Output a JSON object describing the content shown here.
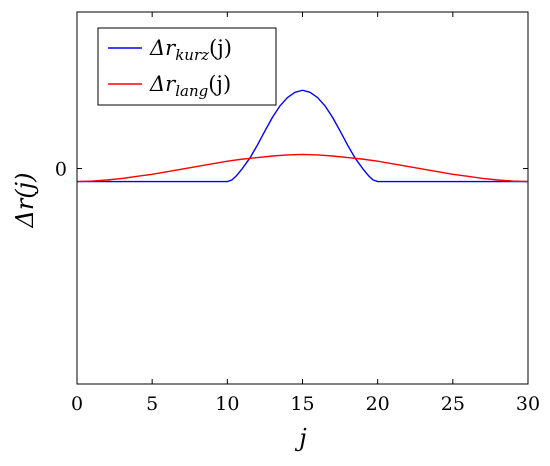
{
  "chart_data": {
    "type": "line",
    "xlabel": "j",
    "ylabel": "Δr(j)",
    "xlim": [
      0,
      30
    ],
    "ylim": [
      -4.13,
      3.0
    ],
    "grid": false,
    "legend_position": "top-left",
    "x_ticks": [
      0,
      5,
      10,
      15,
      20,
      25,
      30
    ],
    "x_tick_labels": [
      "0",
      "5",
      "10",
      "15",
      "20",
      "25",
      "30"
    ],
    "y_ticks": [
      0
    ],
    "y_tick_labels": [
      "0"
    ],
    "colors": {
      "kurz": "#0000ff",
      "lang": "#ff0000"
    },
    "series": [
      {
        "name": "Δr_kurz(j)",
        "legend_base": "Δr",
        "legend_sub": "kurz",
        "legend_tail": "(j)",
        "color": "#0000ff",
        "x": [
          0,
          2,
          4,
          6,
          8,
          10,
          10.3,
          10.6,
          11,
          11.5,
          12,
          12.5,
          13,
          13.5,
          14,
          14.5,
          15,
          15.5,
          16,
          16.5,
          17,
          17.5,
          18,
          18.5,
          19,
          19.4,
          19.7,
          20,
          22,
          24,
          26,
          28,
          30
        ],
        "y": [
          -0.25,
          -0.25,
          -0.25,
          -0.25,
          -0.25,
          -0.25,
          -0.22,
          -0.14,
          0.0,
          0.2,
          0.45,
          0.72,
          0.98,
          1.2,
          1.36,
          1.46,
          1.5,
          1.46,
          1.36,
          1.2,
          0.98,
          0.72,
          0.45,
          0.2,
          0.0,
          -0.14,
          -0.22,
          -0.25,
          -0.25,
          -0.25,
          -0.25,
          -0.25,
          -0.25
        ]
      },
      {
        "name": "Δr_lang(j)",
        "legend_base": "Δr",
        "legend_sub": "lang",
        "legend_tail": "(j)",
        "color": "#ff0000",
        "x": [
          0,
          1,
          2,
          3,
          4,
          5,
          6,
          7,
          8,
          9,
          10,
          11,
          12,
          13,
          14,
          15,
          16,
          17,
          18,
          19,
          20,
          21,
          22,
          23,
          24,
          25,
          26,
          27,
          28,
          29,
          30
        ],
        "y": [
          -0.25,
          -0.24,
          -0.22,
          -0.19,
          -0.15,
          -0.11,
          -0.06,
          -0.01,
          0.04,
          0.09,
          0.14,
          0.18,
          0.21,
          0.24,
          0.26,
          0.27,
          0.26,
          0.24,
          0.21,
          0.18,
          0.14,
          0.09,
          0.04,
          -0.01,
          -0.06,
          -0.11,
          -0.15,
          -0.19,
          -0.22,
          -0.24,
          -0.25
        ]
      }
    ]
  }
}
